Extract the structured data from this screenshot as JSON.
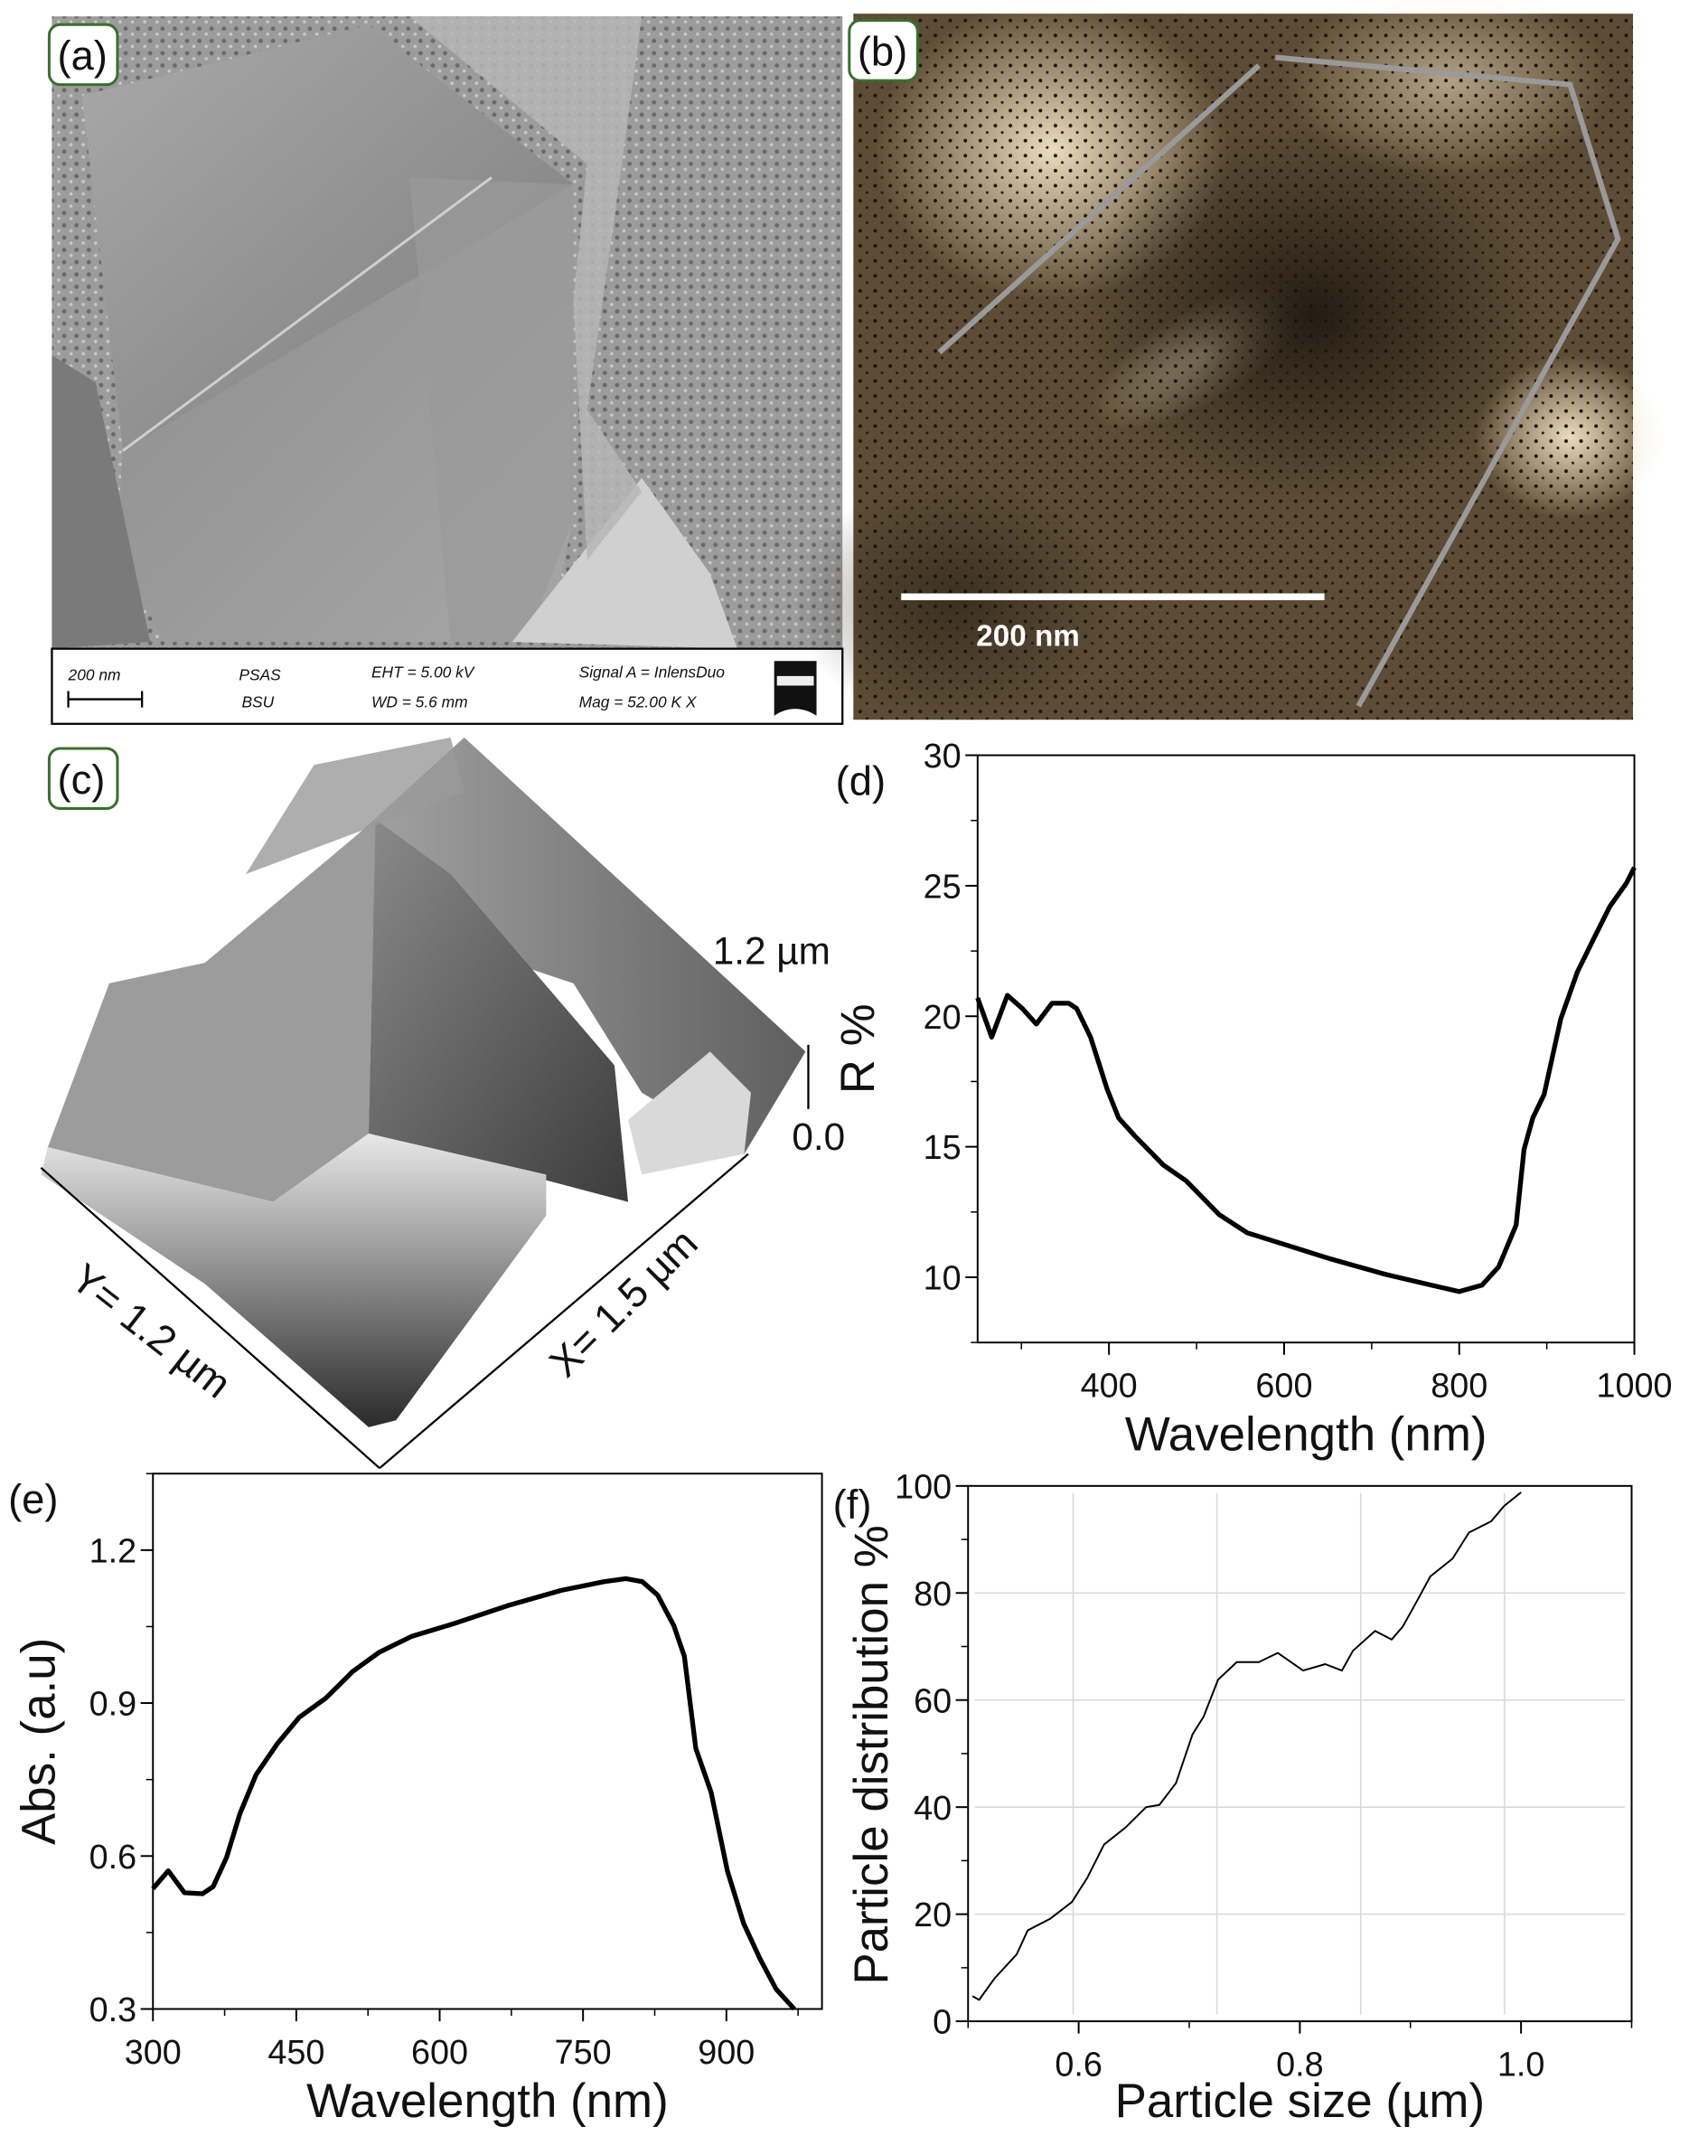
{
  "panels": {
    "a": {
      "label": "(a)",
      "info_bar": {
        "scale": "200 nm",
        "org_line1": "PSAS",
        "org_line2": "BSU",
        "eht": "EHT =  5.00 kV",
        "wd": "WD =  5.6 mm",
        "signal": "Signal A = InlensDuo",
        "mag": "Mag =  52.00 K X",
        "logo": "ZEISS"
      }
    },
    "b": {
      "label": "(b)",
      "scale_bar": "200 nm"
    },
    "c": {
      "label": "(c)",
      "z_max": "1.2 µm",
      "z_min": "0.0",
      "y_axis": "Y= 1.2 µm",
      "x_axis": "X= 1.5 µm"
    },
    "d": {
      "label": "(d)"
    },
    "e": {
      "label": "(e)"
    },
    "f": {
      "label": "(f)"
    }
  },
  "colors": {
    "label_border": "#3c6e2f",
    "line": "#000000",
    "grid": "#d8d8d8",
    "scan_line": "#9a9a9a"
  },
  "chart_data": [
    {
      "panel": "d",
      "type": "line",
      "xlabel": "Wavelength (nm)",
      "ylabel": "R %",
      "xlim": [
        250,
        1000
      ],
      "ylim": [
        7.5,
        30
      ],
      "xticks": [
        "400",
        "600",
        "800",
        "1000"
      ],
      "yticks": [
        "10",
        "15",
        "20",
        "25",
        "30"
      ],
      "grid": false,
      "x": [
        250,
        266,
        284,
        301,
        317,
        335,
        354,
        363,
        379,
        398,
        411,
        430,
        462,
        488,
        526,
        558,
        606,
        653,
        717,
        768,
        800,
        826,
        845,
        865,
        874,
        884,
        897,
        916,
        935,
        954,
        972,
        991,
        1000
      ],
      "y": [
        20.7,
        19.2,
        20.8,
        20.3,
        19.7,
        20.5,
        20.5,
        20.3,
        19.2,
        17.2,
        16.1,
        15.4,
        14.3,
        13.7,
        12.4,
        11.7,
        11.2,
        10.7,
        10.1,
        9.7,
        9.45,
        9.7,
        10.4,
        12.0,
        14.9,
        16.1,
        17.0,
        19.9,
        21.7,
        23.0,
        24.2,
        25.1,
        25.7
      ]
    },
    {
      "panel": "e",
      "type": "line",
      "xlabel": "Wavelength (nm)",
      "ylabel": "Abs. (a.u)",
      "xlim": [
        300,
        1000
      ],
      "ylim": [
        0.3,
        1.35
      ],
      "xticks": [
        "300",
        "450",
        "600",
        "750",
        "900"
      ],
      "yticks": [
        "0.3",
        "0.6",
        "0.9",
        "1.2"
      ],
      "grid": false,
      "x": [
        300,
        316,
        333,
        352,
        363,
        377,
        391,
        408,
        430,
        453,
        481,
        509,
        537,
        571,
        615,
        671,
        727,
        772,
        795,
        812,
        828,
        845,
        856,
        868,
        884,
        901,
        918,
        935,
        952,
        971
      ],
      "y": [
        0.536,
        0.571,
        0.528,
        0.526,
        0.54,
        0.597,
        0.683,
        0.76,
        0.82,
        0.872,
        0.91,
        0.962,
        1.0,
        1.031,
        1.056,
        1.091,
        1.121,
        1.138,
        1.144,
        1.138,
        1.112,
        1.052,
        0.992,
        0.811,
        0.725,
        0.571,
        0.468,
        0.399,
        0.339,
        0.3
      ]
    },
    {
      "panel": "f",
      "type": "line",
      "xlabel": "Particle size (µm)",
      "ylabel": "Particle distribution %",
      "xlim": [
        0.5,
        1.1
      ],
      "ylim": [
        0,
        100
      ],
      "xticks": [
        "0.6",
        "0.8",
        "1.0"
      ],
      "yticks": [
        "0",
        "20",
        "40",
        "60",
        "80",
        "100"
      ],
      "grid": true,
      "x": [
        0.504,
        0.51,
        0.524,
        0.544,
        0.554,
        0.574,
        0.594,
        0.608,
        0.623,
        0.643,
        0.661,
        0.673,
        0.688,
        0.703,
        0.713,
        0.726,
        0.743,
        0.763,
        0.78,
        0.803,
        0.823,
        0.838,
        0.848,
        0.868,
        0.883,
        0.893,
        0.903,
        0.918,
        0.938,
        0.953,
        0.973,
        0.985,
        1.0
      ],
      "y": [
        4.7,
        4.0,
        8.0,
        12.5,
        17.0,
        19.1,
        22.3,
        26.9,
        33,
        36.3,
        40.0,
        40.4,
        44.5,
        53.6,
        56.9,
        63.8,
        67.1,
        67.1,
        68.8,
        65.5,
        66.7,
        65.5,
        69.2,
        72.9,
        71.3,
        73.7,
        77.4,
        83.1,
        86.4,
        91.3,
        93.4,
        96.3,
        98.8
      ]
    }
  ]
}
